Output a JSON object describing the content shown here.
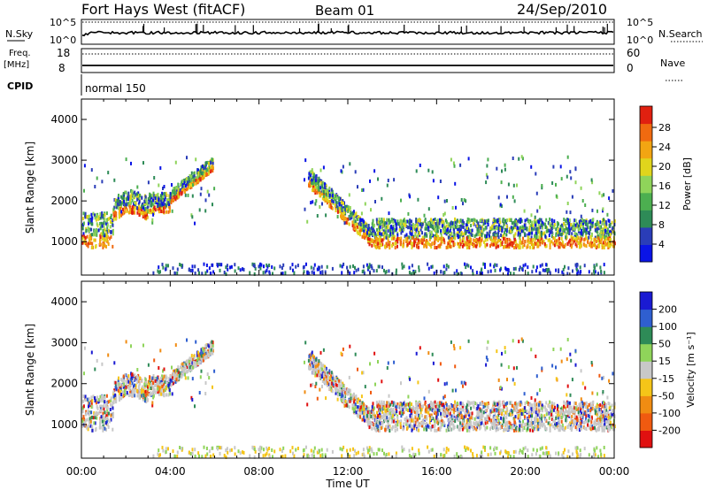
{
  "header": {
    "station": "Fort Hays West (fitACF)",
    "beam": "Beam 01",
    "date": "24/Sep/2010"
  },
  "status_panel": {
    "nsky_label": "N.Sky",
    "nsky_ticks": [
      "10^5",
      "10^0"
    ],
    "nsearch_label": "N.Search",
    "nsearch_ticks": [
      "10^5",
      "10^0"
    ],
    "freq_label": "Freq.",
    "freq_unit": "[MHz]",
    "freq_ticks": [
      "18",
      "8"
    ],
    "nave_label": "Nave",
    "nave_ticks": [
      "60",
      "0"
    ],
    "cpid_label": "CPID",
    "cpid_value": "normal 150"
  },
  "colors": {
    "power_scale": [
      "#0a14e6",
      "#2a3db8",
      "#2e8b57",
      "#4caf50",
      "#8fd45a",
      "#e0d51c",
      "#f2a512",
      "#f06a10",
      "#e02010"
    ],
    "velocity_scale": [
      "#1a1ad2",
      "#2f5fd0",
      "#2e8b57",
      "#8fd45a",
      "#c8c8c8",
      "#f5c518",
      "#f08c12",
      "#f05a10",
      "#e01010"
    ]
  },
  "chart_data": [
    {
      "type": "heatmap",
      "title": "Power",
      "xlabel": "Time UT",
      "ylabel": "Slant Range [km]",
      "x_ticks": [
        "00:00",
        "04:00",
        "08:00",
        "12:00",
        "16:00",
        "20:00",
        "00:00"
      ],
      "y_ticks": [
        1000,
        2000,
        3000,
        4000
      ],
      "xlim_hours": [
        0,
        24
      ],
      "ylim": [
        180,
        4500
      ],
      "colorbar": {
        "label": "Power [dB]",
        "ticks": [
          "4",
          "8",
          "12",
          "16",
          "20",
          "24",
          "28"
        ],
        "range": [
          0,
          30
        ]
      },
      "echo_bands": [
        {
          "from_h": 0.0,
          "to_h": 1.4,
          "range_km": [
            850,
            1700
          ]
        },
        {
          "from_h": 1.4,
          "to_h": 3.0,
          "range_km": [
            1500,
            2200
          ]
        },
        {
          "from_h": 3.0,
          "to_h": 4.0,
          "range_km": [
            1700,
            2200
          ]
        },
        {
          "from_h": 4.0,
          "to_h": 5.9,
          "range_km": [
            2000,
            3050
          ]
        },
        {
          "from_h": 10.2,
          "to_h": 13.0,
          "range_km": [
            1100,
            2800
          ]
        },
        {
          "from_h": 13.0,
          "to_h": 24.0,
          "range_km": [
            850,
            1550
          ]
        }
      ],
      "ground_scatter_band_km": [
        200,
        450
      ]
    },
    {
      "type": "heatmap",
      "title": "Velocity",
      "xlabel": "Time UT",
      "ylabel": "Slant Range [km]",
      "x_ticks": [
        "00:00",
        "04:00",
        "08:00",
        "12:00",
        "16:00",
        "20:00",
        "00:00"
      ],
      "y_ticks": [
        1000,
        2000,
        3000,
        4000
      ],
      "xlim_hours": [
        0,
        24
      ],
      "ylim": [
        180,
        4500
      ],
      "colorbar": {
        "label": "Velocity [m s⁻¹]",
        "ticks": [
          "200",
          "100",
          "50",
          "15",
          "-15",
          "-50",
          "-100",
          "-200"
        ],
        "range": [
          -250,
          250
        ]
      },
      "echo_bands": [
        {
          "from_h": 0.0,
          "to_h": 1.4,
          "range_km": [
            850,
            1700
          ]
        },
        {
          "from_h": 1.4,
          "to_h": 3.0,
          "range_km": [
            1500,
            2200
          ]
        },
        {
          "from_h": 3.0,
          "to_h": 4.0,
          "range_km": [
            1700,
            2200
          ]
        },
        {
          "from_h": 4.0,
          "to_h": 5.9,
          "range_km": [
            2000,
            3050
          ]
        },
        {
          "from_h": 10.2,
          "to_h": 13.0,
          "range_km": [
            1100,
            2800
          ]
        },
        {
          "from_h": 13.0,
          "to_h": 24.0,
          "range_km": [
            850,
            1550
          ]
        }
      ],
      "ground_scatter_band_km": [
        200,
        450
      ]
    }
  ]
}
